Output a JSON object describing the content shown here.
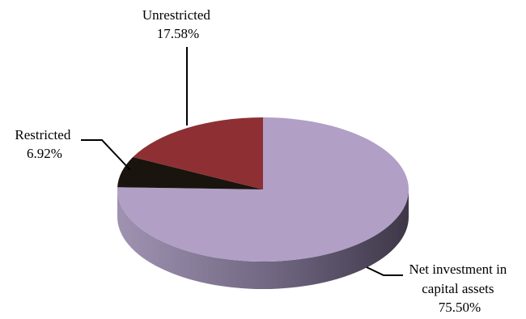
{
  "chart_data": {
    "type": "pie",
    "style": "3d",
    "slices": [
      {
        "label": "Net investment in capital assets",
        "value": 75.5,
        "display": "75.50%",
        "color": "#b19fc6",
        "side_color": "#8c7da0"
      },
      {
        "label": "Restricted",
        "value": 6.92,
        "display": "6.92%",
        "color": "#1a140e",
        "side_color": "#0e0a06"
      },
      {
        "label": "Unrestricted",
        "value": 17.58,
        "display": "17.58%",
        "color": "#8e3033",
        "side_color": "#6a2226"
      }
    ],
    "labels": [
      {
        "lines": [
          "Net investment in",
          "capital assets",
          "75.50%"
        ]
      },
      {
        "lines": [
          "Restricted",
          "6.92%"
        ]
      },
      {
        "lines": [
          "Unrestricted",
          "17.58%"
        ]
      }
    ]
  }
}
